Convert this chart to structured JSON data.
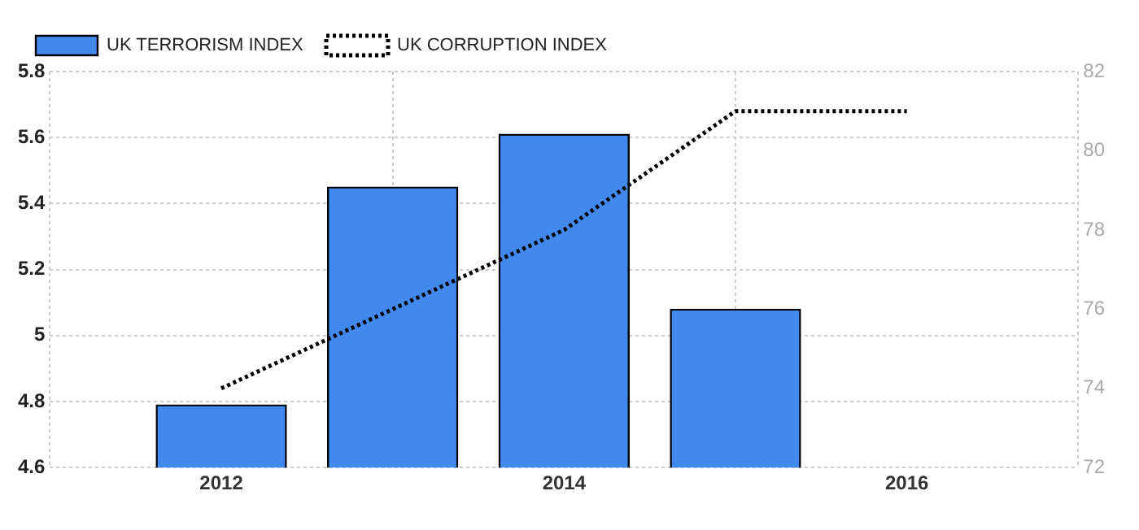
{
  "chart_data": {
    "type": "bar",
    "x": [
      2012,
      2013,
      2014,
      2015
    ],
    "series": [
      {
        "name": "UK TERRORISM INDEX",
        "color": "#4189ed",
        "values": [
          4.79,
          5.45,
          5.61,
          5.08
        ]
      },
      {
        "name": "UK CORRUPTION INDEX",
        "type": "line",
        "axis": "y2",
        "color": "#000000",
        "x": [
          2012,
          2013,
          2014,
          2015,
          2016
        ],
        "values": [
          74,
          76,
          78,
          81,
          81
        ]
      }
    ],
    "xlim": [
      2011,
      2017
    ],
    "xticks": [
      2012,
      2014,
      2016
    ],
    "ylim": [
      4.6,
      5.8
    ],
    "yticks": [
      4.6,
      4.8,
      5,
      5.2,
      5.4,
      5.6,
      5.8
    ],
    "y2lim": [
      72,
      82
    ],
    "y2ticks": [
      72,
      74,
      76,
      78,
      80,
      82
    ],
    "grid": true,
    "legend": "top left",
    "line_style": "dotted",
    "marker": "none"
  }
}
